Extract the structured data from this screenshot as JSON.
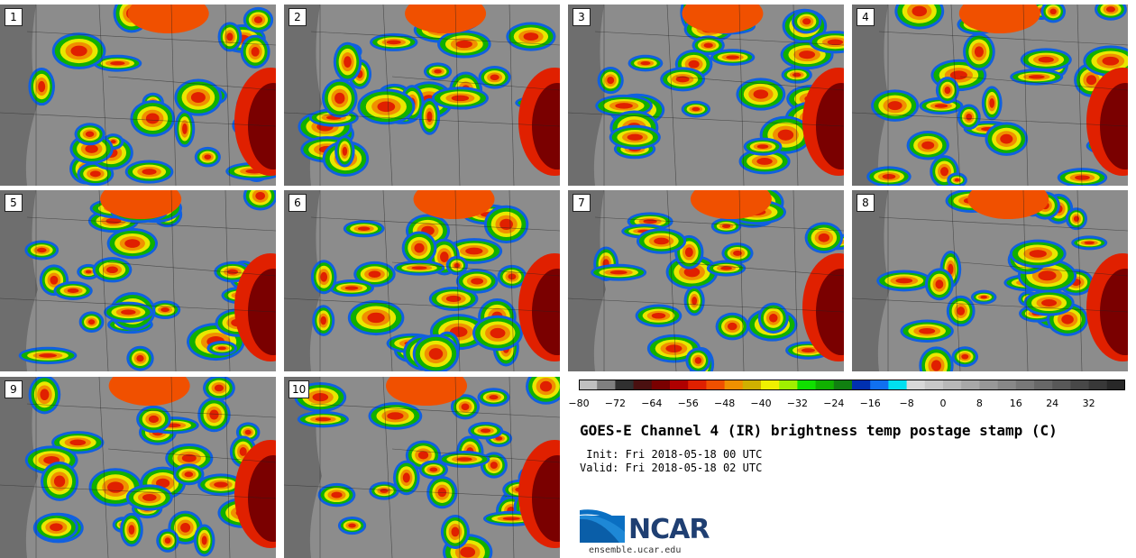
{
  "figure": {
    "title": "GOES-E Channel 4 (IR) brightness temp postage stamp (C)",
    "init_label": " Init: Fri 2018-05-18 00 UTC",
    "valid_label": "Valid: Fri 2018-05-18 02 UTC",
    "logo_text": "NCAR",
    "url": "ensemble.ucar.edu"
  },
  "members": [
    {
      "label": "1"
    },
    {
      "label": "2"
    },
    {
      "label": "3"
    },
    {
      "label": "4"
    },
    {
      "label": "5"
    },
    {
      "label": "6"
    },
    {
      "label": "7"
    },
    {
      "label": "8"
    },
    {
      "label": "9"
    },
    {
      "label": "10"
    }
  ],
  "colorbar": {
    "units": "C",
    "ticks": [
      "−80",
      "−72",
      "−64",
      "−56",
      "−48",
      "−40",
      "−32",
      "−24",
      "−16",
      "−8",
      "0",
      "8",
      "16",
      "24",
      "32"
    ],
    "bin_colors": [
      "#c0c0c0",
      "#808080",
      "#303030",
      "#4a1010",
      "#7a0000",
      "#b00000",
      "#e02000",
      "#f05000",
      "#f09000",
      "#d0b000",
      "#f0f000",
      "#a0f000",
      "#10e000",
      "#10b000",
      "#108010",
      "#0030b0",
      "#1070f0",
      "#00e0f0",
      "#d8d8d8",
      "#c8c8c8",
      "#b8b8b8",
      "#a8a8a8",
      "#989898",
      "#888888",
      "#787878",
      "#686868",
      "#585858",
      "#484848",
      "#383838",
      "#282828"
    ]
  }
}
